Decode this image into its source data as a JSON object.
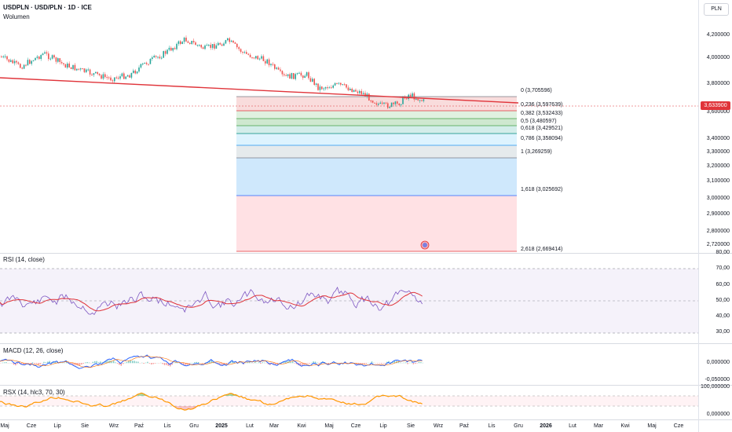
{
  "header": {
    "symbol_line": "USDPLN · USD/PLN · 1D · ICE",
    "volume_label": "Wolumen",
    "currency_button": "PLN"
  },
  "price_scale": {
    "labels": [
      "4,200000",
      "4,000000",
      "3,800000",
      "3,600000",
      "3,400000",
      "3,300000",
      "3,200000",
      "3,100000",
      "3,000000",
      "2,900000",
      "2,800000",
      "2,720000"
    ],
    "last_price": "3,633900"
  },
  "fibonacci": [
    {
      "label": "0 (3,705596)",
      "color": "#787b86"
    },
    {
      "label": "0,236 (3,597639)",
      "color": "#e0343a"
    },
    {
      "label": "0,382 (3,532433)",
      "color": "#43a047"
    },
    {
      "label": "0,5 (3,480597)",
      "color": "#43a047"
    },
    {
      "label": "0,618 (3,429521)",
      "color": "#00897b"
    },
    {
      "label": "0,786 (3,358094)",
      "color": "#2196f3"
    },
    {
      "label": "1 (3,269259)",
      "color": "#787b86"
    },
    {
      "label": "1,618 (3,025692)",
      "color": "#2962ff"
    },
    {
      "label": "2,618 (2,669414)",
      "color": "#e0343a"
    }
  ],
  "rsi": {
    "title": "RSI (14, close)",
    "labels": [
      "80,00",
      "70,00",
      "60,00",
      "50,00",
      "40,00",
      "30,00"
    ]
  },
  "macd": {
    "title": "MACD (12, 26, close)",
    "labels": [
      "0,000000",
      "-0,050000"
    ]
  },
  "rsx": {
    "title": "RSX (14, hlc3, 70, 30)",
    "labels": [
      "100,000000",
      "0,000000"
    ]
  },
  "time_axis": [
    "Maj",
    "Cze",
    "Lip",
    "Sie",
    "Wrz",
    "Paź",
    "Lis",
    "Gru",
    "2025",
    "Lut",
    "Mar",
    "Kwi",
    "Maj",
    "Cze",
    "Lip",
    "Sie",
    "Wrz",
    "Paź",
    "Lis",
    "Gru",
    "2026",
    "Lut",
    "Mar",
    "Kwi",
    "Maj",
    "Cze"
  ],
  "colors": {
    "up": "#26a69a",
    "down": "#ef5350",
    "trendline": "#e0343a",
    "rsi": "#7e57c2",
    "rsi_ma": "#e0343a",
    "macd": "#2962ff",
    "signal": "#ff6d00",
    "rsx": "#ff9800"
  }
}
